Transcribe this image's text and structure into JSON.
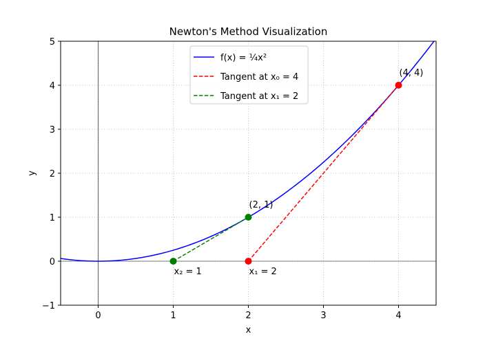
{
  "chart_data": {
    "type": "line",
    "title": "Newton's Method Visualization",
    "xlabel": "x",
    "ylabel": "y",
    "xlim": [
      -0.5,
      4.5
    ],
    "ylim": [
      -1,
      5
    ],
    "xticks": [
      0,
      1,
      2,
      3,
      4
    ],
    "yticks": [
      -1,
      0,
      1,
      2,
      3,
      4,
      5
    ],
    "grid": true,
    "legend_position": "upper-center",
    "series": [
      {
        "name": "f(x) = ¼x²",
        "kind": "function",
        "formula": "x^2/4",
        "color": "#0000ff",
        "style": "solid"
      },
      {
        "name": "Tangent at x₀ = 4",
        "kind": "segment",
        "x": [
          2,
          4
        ],
        "y": [
          0,
          4
        ],
        "color": "#ff0000",
        "style": "dashed"
      },
      {
        "name": "Tangent at x₁ = 2",
        "kind": "segment",
        "x": [
          1,
          2
        ],
        "y": [
          0,
          1
        ],
        "color": "#008000",
        "style": "dashed"
      }
    ],
    "points": [
      {
        "x": 4,
        "y": 4,
        "color": "#ff0000"
      },
      {
        "x": 2,
        "y": 0,
        "color": "#ff0000"
      },
      {
        "x": 2,
        "y": 1,
        "color": "#008000"
      },
      {
        "x": 1,
        "y": 0,
        "color": "#008000"
      }
    ],
    "annotations": [
      {
        "text": "(4, 4)",
        "x": 4,
        "y": 4,
        "anchor": "above-right"
      },
      {
        "text": "(2, 1)",
        "x": 2,
        "y": 1,
        "anchor": "above-right"
      },
      {
        "text": "x₁ = 2",
        "x": 2,
        "y": 0,
        "anchor": "below-right"
      },
      {
        "text": "x₂ = 1",
        "x": 1,
        "y": 0,
        "anchor": "below-right"
      }
    ]
  }
}
